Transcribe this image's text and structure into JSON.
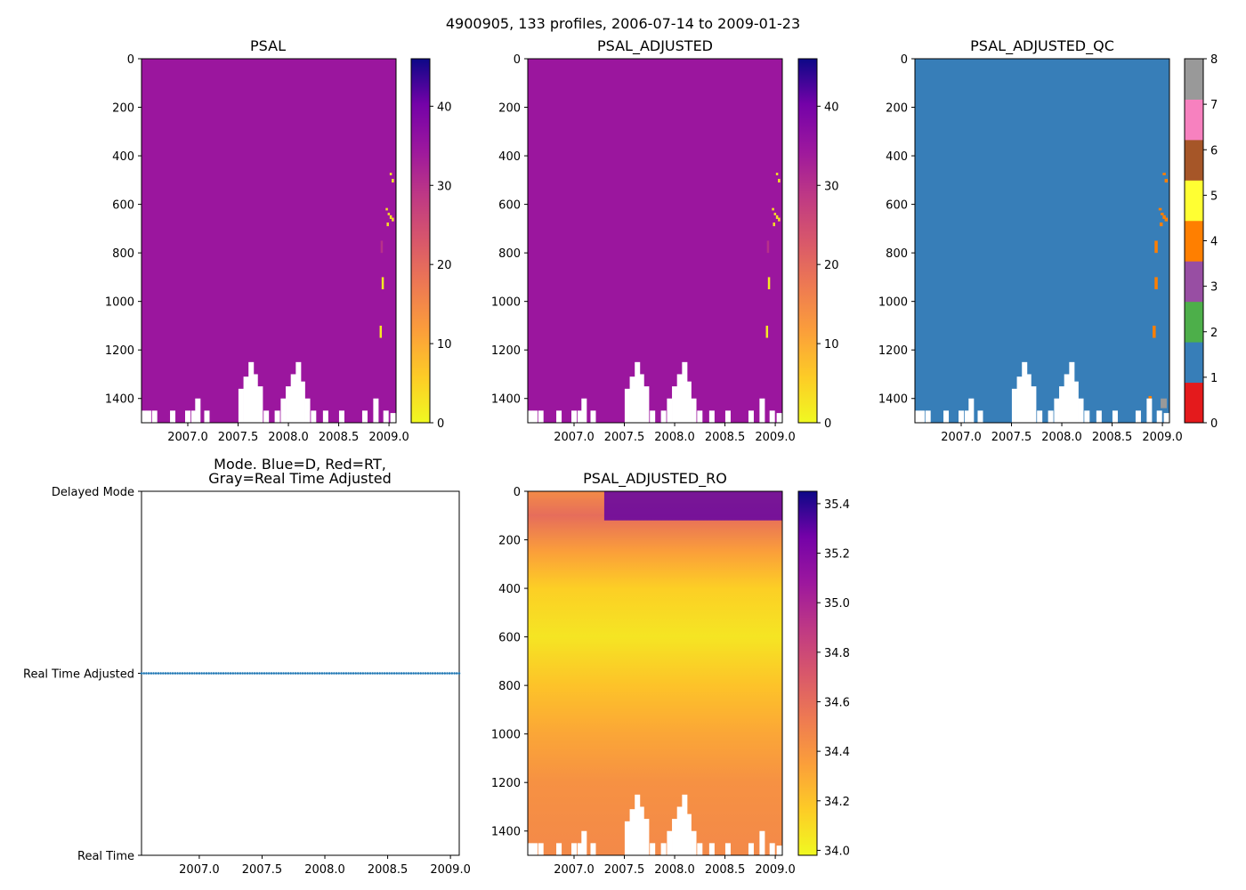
{
  "suptitle": "4900905, 133 profiles, 2006-07-14 to 2009-01-23",
  "chart_data": [
    {
      "type": "heatmap",
      "title": "PSAL",
      "xlim": [
        2006.54,
        2009.07
      ],
      "ylim": [
        1500,
        0
      ],
      "x_ticks": [
        "2007.0",
        "2007.5",
        "2008.0",
        "2008.5",
        "2009.0"
      ],
      "y_ticks": [
        "0",
        "200",
        "400",
        "600",
        "800",
        "1000",
        "1200",
        "1400"
      ],
      "colormap": "plasma_r",
      "colorbar_range": [
        0,
        46
      ],
      "colorbar_ticks": [
        "0",
        "10",
        "20",
        "30",
        "40"
      ],
      "base_value": 34.7,
      "outliers": [
        {
          "x": 2009.02,
          "depth": [
            470,
            480
          ],
          "value": 2
        },
        {
          "x": 2009.04,
          "depth": [
            495,
            510
          ],
          "value": 2
        },
        {
          "x": 2008.98,
          "depth": [
            615,
            625
          ],
          "value": 3
        },
        {
          "x": 2009.0,
          "depth": [
            635,
            645
          ],
          "value": 3
        },
        {
          "x": 2009.02,
          "depth": [
            645,
            660
          ],
          "value": 3
        },
        {
          "x": 2009.04,
          "depth": [
            655,
            670
          ],
          "value": 3
        },
        {
          "x": 2008.99,
          "depth": [
            675,
            690
          ],
          "value": 3
        },
        {
          "x": 2008.93,
          "depth": [
            750,
            800
          ],
          "value": 30
        },
        {
          "x": 2008.94,
          "depth": [
            900,
            950
          ],
          "value": 2
        },
        {
          "x": 2008.92,
          "depth": [
            1100,
            1150
          ],
          "value": 2
        }
      ]
    },
    {
      "type": "heatmap",
      "title": "PSAL_ADJUSTED",
      "xlim": [
        2006.54,
        2009.07
      ],
      "ylim": [
        1500,
        0
      ],
      "x_ticks": [
        "2007.0",
        "2007.5",
        "2008.0",
        "2008.5",
        "2009.0"
      ],
      "y_ticks": [
        "0",
        "200",
        "400",
        "600",
        "800",
        "1000",
        "1200",
        "1400"
      ],
      "colormap": "plasma_r",
      "colorbar_range": [
        0,
        46
      ],
      "colorbar_ticks": [
        "0",
        "10",
        "20",
        "30",
        "40"
      ],
      "base_value": 34.7,
      "outliers": [
        {
          "x": 2009.02,
          "depth": [
            470,
            480
          ],
          "value": 2
        },
        {
          "x": 2009.04,
          "depth": [
            495,
            510
          ],
          "value": 2
        },
        {
          "x": 2008.98,
          "depth": [
            615,
            625
          ],
          "value": 3
        },
        {
          "x": 2009.0,
          "depth": [
            635,
            645
          ],
          "value": 3
        },
        {
          "x": 2009.02,
          "depth": [
            645,
            660
          ],
          "value": 3
        },
        {
          "x": 2009.04,
          "depth": [
            655,
            670
          ],
          "value": 3
        },
        {
          "x": 2008.99,
          "depth": [
            675,
            690
          ],
          "value": 3
        },
        {
          "x": 2008.93,
          "depth": [
            750,
            800
          ],
          "value": 30
        },
        {
          "x": 2008.94,
          "depth": [
            900,
            950
          ],
          "value": 2
        },
        {
          "x": 2008.92,
          "depth": [
            1100,
            1150
          ],
          "value": 2
        }
      ]
    },
    {
      "type": "heatmap",
      "title": "PSAL_ADJUSTED_QC",
      "xlim": [
        2006.54,
        2009.07
      ],
      "ylim": [
        1500,
        0
      ],
      "x_ticks": [
        "2007.0",
        "2007.5",
        "2008.0",
        "2008.5",
        "2009.0"
      ],
      "y_ticks": [
        "0",
        "200",
        "400",
        "600",
        "800",
        "1000",
        "1200",
        "1400"
      ],
      "colorbar_range": [
        0,
        8
      ],
      "colorbar_ticks": [
        "0",
        "1",
        "2",
        "3",
        "4",
        "5",
        "6",
        "7",
        "8"
      ],
      "qc_colors": [
        "#e41a1c",
        "#377eb8",
        "#4daf4a",
        "#984ea3",
        "#ff7f00",
        "#ffff33",
        "#a65628",
        "#f781bf",
        "#999999"
      ],
      "base_flag": 1,
      "flags": [
        {
          "x": 2009.02,
          "depth": [
            470,
            480
          ],
          "flag": 4
        },
        {
          "x": 2009.04,
          "depth": [
            495,
            510
          ],
          "flag": 4
        },
        {
          "x": 2008.98,
          "depth": [
            615,
            625
          ],
          "flag": 4
        },
        {
          "x": 2009.0,
          "depth": [
            635,
            645
          ],
          "flag": 4
        },
        {
          "x": 2009.02,
          "depth": [
            645,
            660
          ],
          "flag": 4
        },
        {
          "x": 2009.04,
          "depth": [
            655,
            670
          ],
          "flag": 4
        },
        {
          "x": 2008.99,
          "depth": [
            675,
            690
          ],
          "flag": 4
        },
        {
          "x": 2008.94,
          "depth": [
            750,
            800
          ],
          "flag": 4
        },
        {
          "x": 2008.94,
          "depth": [
            900,
            950
          ],
          "flag": 4
        },
        {
          "x": 2008.92,
          "depth": [
            1100,
            1150
          ],
          "flag": 4
        },
        {
          "x": 2008.88,
          "depth": [
            1390,
            1500
          ],
          "flag": 4
        },
        {
          "x": 2009.0,
          "depth": [
            1400,
            1440
          ],
          "flag": 8
        },
        {
          "x": 2009.03,
          "depth": [
            1400,
            1440
          ],
          "flag": 8
        }
      ]
    },
    {
      "type": "scatter",
      "title_lines": [
        "Mode. Blue=D, Red=RT,",
        "Gray=Real Time Adjusted"
      ],
      "xlim": [
        2006.54,
        2009.07
      ],
      "x_ticks": [
        "2007.0",
        "2007.5",
        "2008.0",
        "2008.5",
        "2009.0"
      ],
      "y_categories": [
        "Real Time",
        "Real Time Adjusted",
        "Delayed Mode"
      ],
      "series": [
        {
          "name": "profiles",
          "category": "Real Time Adjusted",
          "count": 133,
          "x_start": 2006.54,
          "x_end": 2009.07,
          "color": "#1f77b4"
        }
      ]
    },
    {
      "type": "heatmap",
      "title": "PSAL_ADJUSTED_RO",
      "xlim": [
        2006.54,
        2009.07
      ],
      "ylim": [
        1500,
        0
      ],
      "x_ticks": [
        "2007.0",
        "2007.5",
        "2008.0",
        "2008.5",
        "2009.0"
      ],
      "y_ticks": [
        "0",
        "200",
        "400",
        "600",
        "800",
        "1000",
        "1200",
        "1400"
      ],
      "colormap": "plasma_r",
      "colorbar_range": [
        33.98,
        35.45
      ],
      "colorbar_ticks": [
        "34.0",
        "34.2",
        "34.4",
        "34.6",
        "34.8",
        "35.0",
        "35.2",
        "35.4"
      ],
      "depth_profile": [
        {
          "depth": 0,
          "value": 34.45
        },
        {
          "depth": 100,
          "value": 34.6
        },
        {
          "depth": 250,
          "value": 34.35
        },
        {
          "depth": 400,
          "value": 34.15
        },
        {
          "depth": 600,
          "value": 34.06
        },
        {
          "depth": 800,
          "value": 34.2
        },
        {
          "depth": 1000,
          "value": 34.32
        },
        {
          "depth": 1200,
          "value": 34.42
        },
        {
          "depth": 1500,
          "value": 34.46
        }
      ],
      "surface_high": {
        "x_range": [
          2007.3,
          2009.07
        ],
        "depth": [
          0,
          120
        ],
        "value": 35.3
      }
    }
  ],
  "data_gaps": [
    {
      "x": 2006.56,
      "top": 1450
    },
    {
      "x": 2006.61,
      "top": 1450
    },
    {
      "x": 2006.67,
      "top": 1450
    },
    {
      "x": 2006.85,
      "top": 1450
    },
    {
      "x": 2007.0,
      "top": 1450
    },
    {
      "x": 2007.06,
      "top": 1450
    },
    {
      "x": 2007.1,
      "top": 1400
    },
    {
      "x": 2007.19,
      "top": 1450
    },
    {
      "x": 2007.53,
      "top": 1360
    },
    {
      "x": 2007.58,
      "top": 1310
    },
    {
      "x": 2007.63,
      "top": 1250
    },
    {
      "x": 2007.67,
      "top": 1300
    },
    {
      "x": 2007.72,
      "top": 1350
    },
    {
      "x": 2007.78,
      "top": 1450
    },
    {
      "x": 2007.89,
      "top": 1450
    },
    {
      "x": 2007.95,
      "top": 1400
    },
    {
      "x": 2008.0,
      "top": 1350
    },
    {
      "x": 2008.05,
      "top": 1300
    },
    {
      "x": 2008.1,
      "top": 1250
    },
    {
      "x": 2008.14,
      "top": 1330
    },
    {
      "x": 2008.19,
      "top": 1400
    },
    {
      "x": 2008.25,
      "top": 1450
    },
    {
      "x": 2008.37,
      "top": 1450
    },
    {
      "x": 2008.53,
      "top": 1450
    },
    {
      "x": 2008.76,
      "top": 1450
    },
    {
      "x": 2008.87,
      "top": 1400
    },
    {
      "x": 2008.97,
      "top": 1450
    },
    {
      "x": 2009.04,
      "top": 1460
    }
  ]
}
